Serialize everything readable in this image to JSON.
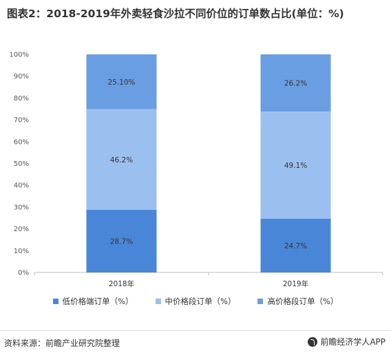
{
  "title": "图表2：2018-2019年外卖轻食沙拉不同价位的订单数占比(单位：%)",
  "source": "资料来源：前瞻产业研究院整理",
  "brand": "前瞻经济学人APP",
  "colors": {
    "low": "#4a86d8",
    "mid": "#9bc0f0",
    "high": "#6a9ee3",
    "axis": "#bfbfbf"
  },
  "chart_data": {
    "type": "bar",
    "stacked": true,
    "categories": [
      "2018年",
      "2019年"
    ],
    "series": [
      {
        "name": "低价格端订单（%）",
        "values": [
          28.7,
          24.7
        ],
        "labels": [
          "28.7%",
          "24.7%"
        ]
      },
      {
        "name": "中价格段订单（%）",
        "values": [
          46.2,
          49.1
        ],
        "labels": [
          "46.2%",
          "49.1%"
        ]
      },
      {
        "name": "高价格段订单（%）",
        "values": [
          25.1,
          26.2
        ],
        "labels": [
          "25.10%",
          "26.2%"
        ]
      }
    ],
    "ylim": [
      0,
      100
    ],
    "yticks": [
      "0%",
      "10%",
      "20%",
      "30%",
      "40%",
      "50%",
      "60%",
      "70%",
      "80%",
      "90%",
      "100%"
    ],
    "grid": false,
    "legend": "bottom"
  }
}
